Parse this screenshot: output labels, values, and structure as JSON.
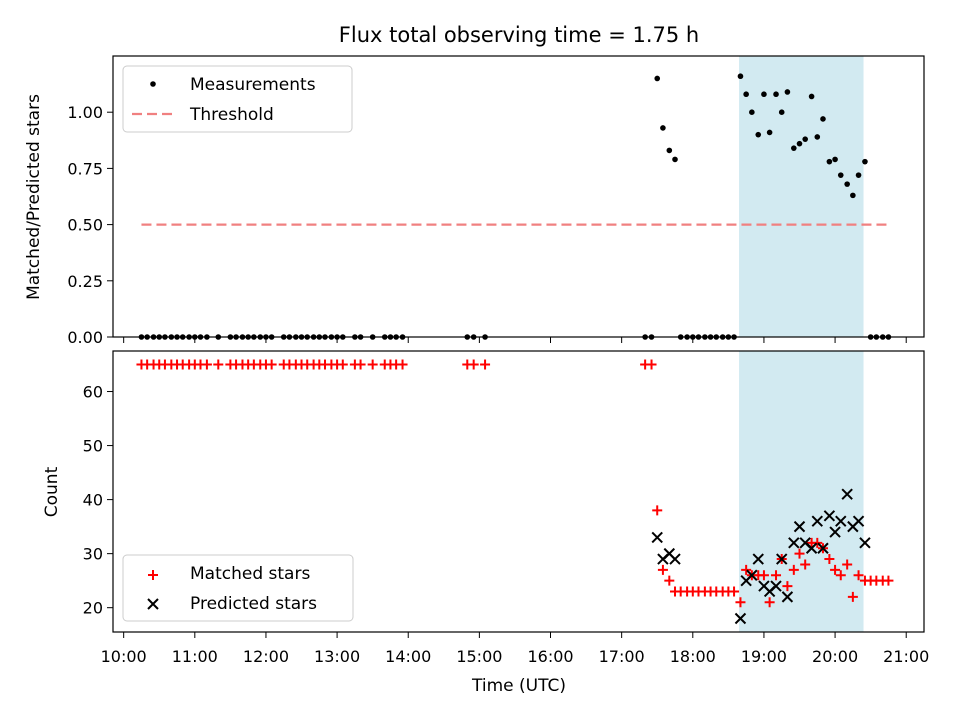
{
  "chart_data": {
    "title": "Flux total observing time = 1.75 h",
    "xlabel": "Time (UTC)",
    "x_ticks": [
      "10:00",
      "11:00",
      "12:00",
      "13:00",
      "14:00",
      "15:00",
      "16:00",
      "17:00",
      "18:00",
      "19:00",
      "20:00",
      "21:00"
    ],
    "xlim_hours": [
      9.85,
      21.25
    ],
    "shaded_span_hours": [
      18.65,
      20.4
    ],
    "colors": {
      "threshold": "#f08080",
      "matched": "#ff0000",
      "predicted": "#000000",
      "span": "#add8e6"
    },
    "top": {
      "type": "scatter",
      "ylabel": "Matched/Predicted stars",
      "ylim": [
        0,
        1.25
      ],
      "y_ticks": [
        "0.00",
        "0.25",
        "0.50",
        "0.75",
        "1.00"
      ],
      "legend": [
        "Measurements",
        "Threshold"
      ],
      "threshold": {
        "value": 0.5,
        "x_range": [
          10.25,
          20.75
        ]
      },
      "x": [
        10.25,
        10.33,
        10.42,
        10.5,
        10.58,
        10.67,
        10.75,
        10.83,
        10.92,
        11.0,
        11.08,
        11.17,
        11.33,
        11.5,
        11.58,
        11.67,
        11.75,
        11.83,
        11.92,
        12.0,
        12.08,
        12.25,
        12.33,
        12.42,
        12.5,
        12.58,
        12.67,
        12.75,
        12.83,
        12.92,
        13.0,
        13.08,
        13.25,
        13.33,
        13.5,
        13.67,
        13.75,
        13.83,
        13.92,
        14.83,
        14.92,
        15.08,
        17.33,
        17.42,
        17.5,
        17.58,
        17.67,
        17.75,
        17.83,
        17.92,
        18.0,
        18.08,
        18.17,
        18.25,
        18.33,
        18.42,
        18.5,
        18.58,
        18.67,
        18.75,
        18.83,
        18.92,
        19.0,
        19.08,
        19.17,
        19.25,
        19.33,
        19.42,
        19.5,
        19.58,
        19.67,
        19.75,
        19.83,
        19.92,
        20.0,
        20.08,
        20.17,
        20.25,
        20.33,
        20.42,
        20.5,
        20.58,
        20.67,
        20.75
      ],
      "y": [
        0,
        0,
        0,
        0,
        0,
        0,
        0,
        0,
        0,
        0,
        0,
        0,
        0,
        0,
        0,
        0,
        0,
        0,
        0,
        0,
        0,
        0,
        0,
        0,
        0,
        0,
        0,
        0,
        0,
        0,
        0,
        0,
        0,
        0,
        0,
        0,
        0,
        0,
        0,
        0,
        0,
        0,
        0,
        0,
        1.15,
        0.93,
        0.83,
        0.79,
        0,
        0,
        0,
        0,
        0,
        0,
        0,
        0,
        0,
        0,
        1.16,
        1.08,
        1.0,
        0.9,
        1.08,
        0.91,
        1.08,
        1.0,
        1.09,
        0.84,
        0.86,
        0.88,
        1.07,
        0.89,
        0.97,
        0.78,
        0.79,
        0.72,
        0.68,
        0.63,
        0.72,
        0.78,
        0,
        0,
        0,
        0
      ]
    },
    "bottom": {
      "type": "scatter",
      "ylabel": "Count",
      "ylim": [
        15.5,
        67.5
      ],
      "y_ticks": [
        "20",
        "30",
        "40",
        "50",
        "60"
      ],
      "legend": [
        "Matched stars",
        "Predicted stars"
      ],
      "matched": {
        "x": [
          10.25,
          10.33,
          10.42,
          10.5,
          10.58,
          10.67,
          10.75,
          10.83,
          10.92,
          11.0,
          11.08,
          11.17,
          11.33,
          11.5,
          11.58,
          11.67,
          11.75,
          11.83,
          11.92,
          12.0,
          12.08,
          12.25,
          12.33,
          12.42,
          12.5,
          12.58,
          12.67,
          12.75,
          12.83,
          12.92,
          13.0,
          13.08,
          13.25,
          13.33,
          13.5,
          13.67,
          13.75,
          13.83,
          13.92,
          14.83,
          14.92,
          15.08,
          17.33,
          17.42,
          17.5,
          17.58,
          17.67,
          17.75,
          17.83,
          17.92,
          18.0,
          18.08,
          18.17,
          18.25,
          18.33,
          18.42,
          18.5,
          18.58,
          18.67,
          18.75,
          18.83,
          18.92,
          19.0,
          19.08,
          19.17,
          19.25,
          19.33,
          19.42,
          19.5,
          19.58,
          19.67,
          19.75,
          19.83,
          19.92,
          20.0,
          20.08,
          20.17,
          20.25,
          20.33,
          20.42,
          20.5,
          20.58,
          20.67,
          20.75
        ],
        "y": [
          65,
          65,
          65,
          65,
          65,
          65,
          65,
          65,
          65,
          65,
          65,
          65,
          65,
          65,
          65,
          65,
          65,
          65,
          65,
          65,
          65,
          65,
          65,
          65,
          65,
          65,
          65,
          65,
          65,
          65,
          65,
          65,
          65,
          65,
          65,
          65,
          65,
          65,
          65,
          65,
          65,
          65,
          65,
          65,
          38,
          27,
          25,
          23,
          23,
          23,
          23,
          23,
          23,
          23,
          23,
          23,
          23,
          23,
          21,
          27,
          26,
          26,
          26,
          21,
          26,
          29,
          24,
          27,
          30,
          28,
          32,
          32,
          31,
          29,
          27,
          26,
          28,
          22,
          26,
          25,
          25,
          25,
          25,
          25
        ]
      },
      "predicted": {
        "x": [
          17.5,
          17.58,
          17.67,
          17.75,
          18.67,
          18.75,
          18.83,
          18.92,
          19.0,
          19.08,
          19.17,
          19.25,
          19.33,
          19.42,
          19.5,
          19.58,
          19.67,
          19.75,
          19.83,
          19.92,
          20.0,
          20.08,
          20.17,
          20.25,
          20.33,
          20.42
        ],
        "y": [
          33,
          29,
          30,
          29,
          18,
          25,
          26,
          29,
          24,
          23,
          24,
          29,
          22,
          32,
          35,
          32,
          31,
          36,
          31,
          37,
          34,
          36,
          41,
          35,
          36,
          32
        ]
      }
    }
  }
}
